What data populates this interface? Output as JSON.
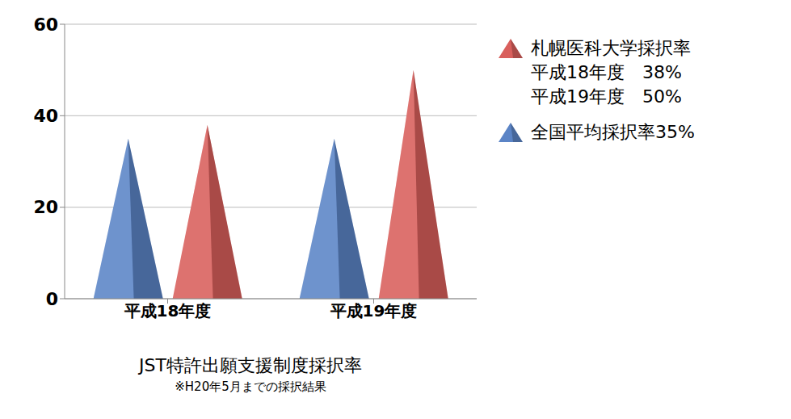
{
  "chart_data": {
    "type": "bar",
    "title": "JST特許出願支援制度採択率",
    "subtitle": "※H20年5月までの採択結果",
    "categories": [
      "平成18年度",
      "平成19年度"
    ],
    "series": [
      {
        "name": "札幌医科大学採択率",
        "color": "#d95f5c",
        "values": [
          38,
          50
        ]
      },
      {
        "name": "全国平均採択率35%",
        "color": "#5b84c6",
        "values": [
          35,
          35
        ]
      }
    ],
    "annotations": [
      "平成18年度　38%",
      "平成19年度　50%"
    ],
    "ylim": [
      0,
      60
    ],
    "yticks": [
      0,
      20,
      40,
      60
    ],
    "grid": true,
    "marker": "pyramid"
  }
}
